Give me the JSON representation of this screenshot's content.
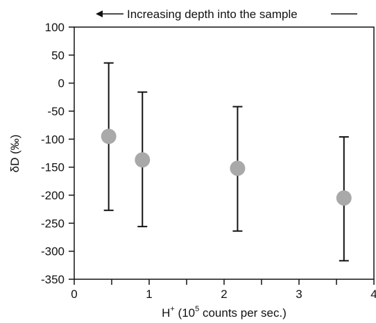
{
  "annotation": {
    "arrow_text": "Increasing depth into the sample"
  },
  "chart_data": {
    "type": "scatter",
    "title": "",
    "xlabel": "H",
    "xlabel_superscript": "+",
    "xlabel_rest_prefix": " (10",
    "xlabel_rest_exp": "5",
    "xlabel_rest_suffix": " counts per sec.)",
    "ylabel": "δD (‰)",
    "xlim": [
      0,
      4
    ],
    "ylim": [
      -350,
      100
    ],
    "x_ticks": [
      0,
      1,
      2,
      3,
      4
    ],
    "x_tick_labels": [
      "0",
      "1",
      "2",
      "3",
      "4"
    ],
    "y_ticks": [
      100,
      50,
      0,
      -50,
      -100,
      -150,
      -200,
      -250,
      -300,
      -350
    ],
    "y_tick_labels": [
      "100",
      "50",
      "0",
      "-50",
      "-100",
      "-150",
      "-200",
      "-250",
      "-300",
      "-350"
    ],
    "grid": false,
    "marker_color": "#a9a9a9",
    "series": [
      {
        "points": [
          {
            "x": 0.46,
            "y": -95,
            "err_low": -227,
            "err_high": 36
          },
          {
            "x": 0.91,
            "y": -137,
            "err_low": -256,
            "err_high": -16
          },
          {
            "x": 2.18,
            "y": -152,
            "err_low": -264,
            "err_high": -42
          },
          {
            "x": 3.6,
            "y": -205,
            "err_low": -317,
            "err_high": -96
          }
        ]
      }
    ]
  }
}
